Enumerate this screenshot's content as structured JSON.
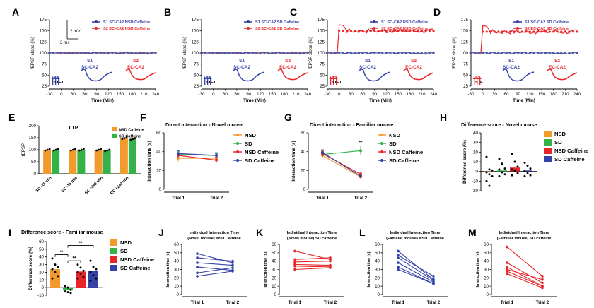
{
  "colors": {
    "s1": "#3442a8",
    "s2": "#e8262a",
    "nsd": "#f39a2c",
    "sd": "#33b24a",
    "nsdc": "#e8262a",
    "sdc": "#3442a8",
    "sig": "#7a7a7a"
  },
  "panels": {
    "A": {
      "letter": "A",
      "legend": [
        "S1 SC-CA2 NSD Caffeine",
        "S2 EC-CA2 NSD Caffeine"
      ],
      "scale_mv": "2 mV",
      "scale_ms": "3 ms",
      "ylabel": "fEPSP slope (%)",
      "xlabel": "Time (Min)",
      "stim": "S1\nSTET",
      "trace1": "S1",
      "trace1b": "SC-CA2",
      "trace2": "S2",
      "trace2b": "EC-CA2"
    },
    "B": {
      "letter": "B",
      "legend": [
        "S1 SC-CA2 SD Caffeine",
        "S2 EC-CA2 SD Caffeine"
      ],
      "ylabel": "fEPSP slope (%)",
      "xlabel": "Time (Min)",
      "stim": "S1\nSTET",
      "trace1": "S1",
      "trace1b": "SC-CA2",
      "trace2": "S2",
      "trace2b": "EC-CA2"
    },
    "C": {
      "letter": "C",
      "legend": [
        "S1 SC-CA2 NSD Caffeine",
        "S2 EC-CA2 NSD Caffeine"
      ],
      "ylabel": "fEPSP slope (%)",
      "xlabel": "Time (Min)",
      "stim": "S2\nSTET",
      "trace1": "S1",
      "trace1b": "SC-CA2",
      "trace2": "S2",
      "trace2b": "EC-CA2"
    },
    "D": {
      "letter": "D",
      "legend": [
        "S1 SC-CA2 SD Caffeine",
        "S2 EC-CA2 SD Caffeine"
      ],
      "ylabel": "fEPSP slope (%)",
      "xlabel": "Time (Min)",
      "stim": "S2\nSTET",
      "trace1": "S1",
      "trace1b": "SC-CA2",
      "trace2": "S2",
      "trace2b": "EC-CA2"
    },
    "E": {
      "letter": "E",
      "title": "LTP",
      "legend": [
        "NSD Caffeine",
        "SD Caffeine"
      ],
      "ylabel": "fEPSP"
    },
    "F": {
      "letter": "F",
      "title": "Direct interaction - Novel mouse",
      "legend": [
        "NSD",
        "SD",
        "NSD Caffeine",
        "SD Caffeine"
      ],
      "ylabel": "Interaction time (s)"
    },
    "G": {
      "letter": "G",
      "title": "Direct interaction - Familiar mouse",
      "legend": [
        "NSD",
        "SD",
        "NSD Caffeine",
        "SD Caffeine"
      ],
      "ylabel": "Interaction time (s)",
      "sig": "**"
    },
    "H": {
      "letter": "H",
      "title": "Difference score - Novel mouse",
      "legend": [
        "NSD",
        "SD",
        "NSD Caffeine",
        "SD Caffeine"
      ],
      "ylabel": "Difference score (%)"
    },
    "I": {
      "letter": "I",
      "title": "Difference score - Familiar mouse",
      "legend": [
        "NSD",
        "SD",
        "NSD Caffeine",
        "SD Caffeine"
      ],
      "ylabel": "Difference score (%)",
      "sig": "**"
    },
    "J": {
      "letter": "J",
      "title1": "Individual Interaction Time",
      "title2": "(Novel mouse) NSD Caffeine",
      "ylabel": "Interaction time (s)"
    },
    "K": {
      "letter": "K",
      "title1": "Individual Interaction Time",
      "title2": "(Novel mouse) SD caffeine",
      "ylabel": "Interaction time (s)"
    },
    "L": {
      "letter": "L",
      "title1": "Individual Interaction Time",
      "title2": "(Familiar mouse) NSD Caffeine",
      "ylabel": "Interaction time (s)"
    },
    "M": {
      "letter": "M",
      "title1": "Individual Interaction Time",
      "title2": "(Familiar mouse) SD caffeine",
      "ylabel": "Interaction time (s)"
    }
  },
  "chart_data": [
    {
      "panel": "A",
      "type": "line",
      "xlabel": "Time (Min)",
      "ylabel": "fEPSP slope (%)",
      "xlim": [
        -30,
        240
      ],
      "ylim": [
        25,
        175
      ],
      "xticks": [
        -30,
        0,
        30,
        60,
        90,
        120,
        150,
        180,
        210,
        240
      ],
      "yticks": [
        25,
        50,
        75,
        100,
        125,
        150,
        175
      ],
      "series": [
        {
          "name": "S1 SC-CA2 NSD Caffeine",
          "level_after": 100
        },
        {
          "name": "S2 EC-CA2 NSD Caffeine",
          "level_after": 100
        }
      ]
    },
    {
      "panel": "B",
      "type": "line",
      "xlabel": "Time (Min)",
      "ylabel": "fEPSP slope (%)",
      "xlim": [
        -30,
        240
      ],
      "ylim": [
        25,
        175
      ],
      "xticks": [
        -30,
        0,
        30,
        60,
        90,
        120,
        150,
        180,
        210,
        240
      ],
      "yticks": [
        25,
        50,
        75,
        100,
        125,
        150,
        175
      ],
      "series": [
        {
          "name": "S1 SC-CA2 SD Caffeine",
          "level_after": 100
        },
        {
          "name": "S2 EC-CA2 SD Caffeine",
          "level_after": 100
        }
      ]
    },
    {
      "panel": "C",
      "type": "line",
      "xlabel": "Time (Min)",
      "ylabel": "fEPSP slope (%)",
      "xlim": [
        -30,
        240
      ],
      "ylim": [
        25,
        175
      ],
      "xticks": [
        -30,
        0,
        30,
        60,
        90,
        120,
        150,
        180,
        210,
        240
      ],
      "yticks": [
        25,
        50,
        75,
        100,
        125,
        150,
        175
      ],
      "series": [
        {
          "name": "S1 SC-CA2 NSD Caffeine",
          "level_after": 100
        },
        {
          "name": "S2 EC-CA2 NSD Caffeine",
          "level_after": 150
        }
      ]
    },
    {
      "panel": "D",
      "type": "line",
      "xlabel": "Time (Min)",
      "ylabel": "fEPSP slope (%)",
      "xlim": [
        -30,
        240
      ],
      "ylim": [
        25,
        175
      ],
      "xticks": [
        -30,
        0,
        30,
        60,
        90,
        120,
        150,
        180,
        210,
        240
      ],
      "yticks": [
        25,
        50,
        75,
        100,
        125,
        150,
        175
      ],
      "series": [
        {
          "name": "S1 SC-CA2 SD Caffeine",
          "level_after": 100
        },
        {
          "name": "S2 EC-CA2 SD Caffeine",
          "level_after": 148
        }
      ]
    },
    {
      "panel": "E",
      "type": "bar",
      "title": "LTP",
      "ylabel": "fEPSP",
      "ylim": [
        0,
        200
      ],
      "yticks": [
        0,
        50,
        100,
        150,
        200
      ],
      "categories": [
        "SC -15 min",
        "EC -15 min",
        "SC +240 min",
        "EC +240 min"
      ],
      "series": [
        {
          "name": "NSD Caffeine",
          "values": [
            100,
            100,
            100,
            148
          ]
        },
        {
          "name": "SD Caffeine",
          "values": [
            100,
            100,
            97,
            145
          ]
        }
      ]
    },
    {
      "panel": "F",
      "type": "line",
      "title": "Direct interaction - Novel mouse",
      "ylabel": "Interaction time (s)",
      "ylim": [
        0,
        60
      ],
      "yticks": [
        0,
        20,
        40,
        60
      ],
      "categories": [
        "Trial 1",
        "Trial 2"
      ],
      "series": [
        {
          "name": "NSD",
          "values": [
            33,
            33
          ],
          "err": [
            4,
            3
          ]
        },
        {
          "name": "SD",
          "values": [
            37,
            36
          ],
          "err": [
            3,
            3
          ]
        },
        {
          "name": "NSD Caffeine",
          "values": [
            36,
            31
          ],
          "err": [
            3,
            3
          ]
        },
        {
          "name": "SD Caffeine",
          "values": [
            38,
            36
          ],
          "err": [
            3,
            2
          ]
        }
      ]
    },
    {
      "panel": "G",
      "type": "line",
      "title": "Direct interaction - Familiar mouse",
      "ylabel": "Interaction time (s)",
      "ylim": [
        0,
        60
      ],
      "yticks": [
        0,
        20,
        40,
        60
      ],
      "categories": [
        "Trial 1",
        "Trial 2"
      ],
      "series": [
        {
          "name": "NSD",
          "values": [
            36,
            13
          ],
          "err": [
            4,
            2
          ]
        },
        {
          "name": "SD",
          "values": [
            37,
            41
          ],
          "err": [
            3,
            5
          ]
        },
        {
          "name": "NSD Caffeine",
          "values": [
            38,
            16
          ],
          "err": [
            3,
            2
          ]
        },
        {
          "name": "SD Caffeine",
          "values": [
            39,
            14
          ],
          "err": [
            3,
            2
          ]
        }
      ]
    },
    {
      "panel": "H",
      "type": "bar",
      "title": "Difference score - Novel mouse",
      "ylabel": "Difference score (%)",
      "ylim": [
        -20,
        40
      ],
      "yticks": [
        -20,
        -10,
        0,
        10,
        20,
        30,
        40
      ],
      "series": [
        {
          "name": "NSD",
          "values": [
            0
          ],
          "points": [
            15,
            2,
            1,
            -1,
            -3,
            -5,
            -10,
            -15
          ]
        },
        {
          "name": "SD",
          "values": [
            1
          ],
          "points": [
            13,
            8,
            3,
            2,
            -1,
            -3,
            -5
          ]
        },
        {
          "name": "NSD Caffeine",
          "values": [
            4
          ],
          "points": [
            18,
            10,
            5,
            2,
            1,
            -2,
            -4
          ]
        },
        {
          "name": "SD Caffeine",
          "values": [
            1
          ],
          "points": [
            9,
            6,
            3,
            0,
            -2,
            -4,
            -5
          ]
        }
      ]
    },
    {
      "panel": "I",
      "type": "bar",
      "title": "Difference score - Familiar mouse",
      "ylabel": "Difference score (%)",
      "ylim": [
        -10,
        60
      ],
      "yticks": [
        -10,
        0,
        10,
        20,
        30,
        40,
        50,
        60
      ],
      "series": [
        {
          "name": "NSD",
          "values": [
            24
          ],
          "points": [
            38,
            30,
            27,
            24,
            20,
            15,
            12
          ]
        },
        {
          "name": "SD",
          "values": [
            -3
          ],
          "points": [
            2,
            0,
            -3,
            -5,
            -6,
            -7
          ]
        },
        {
          "name": "NSD Caffeine",
          "values": [
            21
          ],
          "points": [
            30,
            26,
            22,
            20,
            18,
            14,
            12
          ]
        },
        {
          "name": "SD Caffeine",
          "values": [
            22
          ],
          "points": [
            35,
            27,
            24,
            20,
            16,
            12,
            9
          ]
        }
      ]
    },
    {
      "panel": "J",
      "type": "line",
      "title": "Individual Interaction Time (Novel mouse) NSD Caffeine",
      "ylabel": "Interaction time (s)",
      "ylim": [
        0,
        60
      ],
      "yticks": [
        0,
        10,
        20,
        30,
        40,
        50,
        60
      ],
      "categories": [
        "Trial 1",
        "Trial 2"
      ],
      "series": [
        {
          "values": [
            49,
            38
          ]
        },
        {
          "values": [
            44,
            40
          ]
        },
        {
          "values": [
            38,
            35
          ]
        },
        {
          "values": [
            33,
            29
          ]
        },
        {
          "values": [
            26,
            32
          ]
        },
        {
          "values": [
            22,
            28
          ]
        }
      ]
    },
    {
      "panel": "K",
      "type": "line",
      "title": "Individual Interaction Time (Novel mouse) SD caffeine",
      "ylabel": "Interaction time (s)",
      "ylim": [
        0,
        60
      ],
      "yticks": [
        0,
        10,
        20,
        30,
        40,
        50,
        60
      ],
      "categories": [
        "Trial 1",
        "Trial 2"
      ],
      "series": [
        {
          "values": [
            52,
            42
          ]
        },
        {
          "values": [
            42,
            44
          ]
        },
        {
          "values": [
            39,
            40
          ]
        },
        {
          "values": [
            36,
            35
          ]
        },
        {
          "values": [
            34,
            33
          ]
        },
        {
          "values": [
            30,
            32
          ]
        }
      ]
    },
    {
      "panel": "L",
      "type": "line",
      "title": "Individual Interaction Time (Familiar mouse) NSD Caffeine",
      "ylabel": "Interaction time (s)",
      "ylim": [
        0,
        60
      ],
      "yticks": [
        0,
        10,
        20,
        30,
        40,
        50,
        60
      ],
      "categories": [
        "Trial 1",
        "Trial 2"
      ],
      "series": [
        {
          "values": [
            52,
            18
          ]
        },
        {
          "values": [
            47,
            22
          ]
        },
        {
          "values": [
            44,
            17
          ]
        },
        {
          "values": [
            38,
            15
          ]
        },
        {
          "values": [
            33,
            13
          ]
        },
        {
          "values": [
            30,
            13
          ]
        }
      ]
    },
    {
      "panel": "M",
      "type": "line",
      "title": "Individual Interaction Time (Familiar mouse) SD caffeine",
      "ylabel": "Interaction time (s)",
      "ylim": [
        0,
        60
      ],
      "yticks": [
        0,
        10,
        20,
        30,
        40,
        50,
        60
      ],
      "categories": [
        "Trial 1",
        "Trial 2"
      ],
      "series": [
        {
          "values": [
            57,
            22
          ]
        },
        {
          "values": [
            38,
            14
          ]
        },
        {
          "values": [
            33,
            10
          ]
        },
        {
          "values": [
            30,
            18
          ]
        },
        {
          "values": [
            28,
            10
          ]
        },
        {
          "values": [
            25,
            8
          ]
        }
      ]
    }
  ]
}
